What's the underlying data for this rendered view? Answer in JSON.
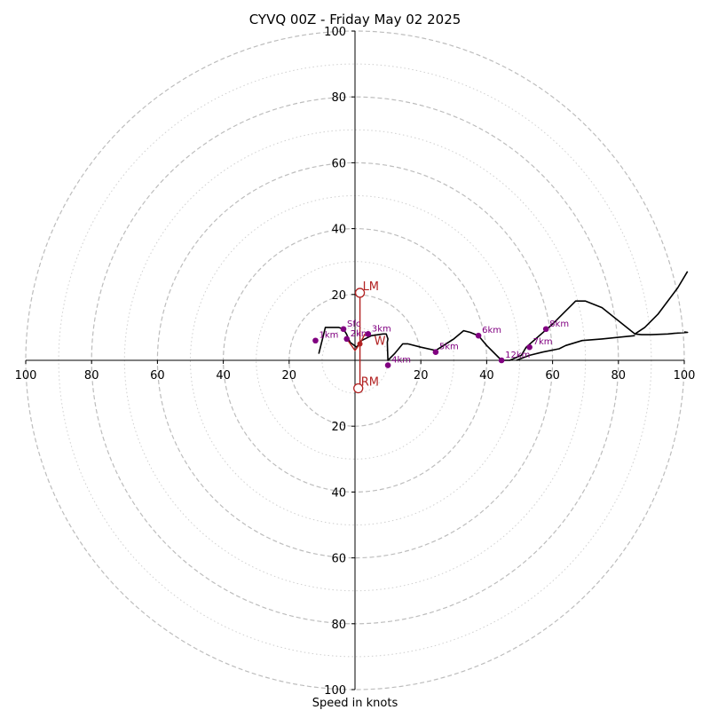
{
  "title": "CYVQ 00Z - Friday May 02 2025",
  "xlabel": "Speed in knots",
  "chart_data": {
    "type": "hodograph",
    "title": "CYVQ 00Z - Friday May 02 2025",
    "xlabel": "Speed in knots",
    "xlim": [
      -100,
      100
    ],
    "ylim": [
      -100,
      100
    ],
    "rings": {
      "major": [
        20,
        40,
        60,
        80,
        100
      ],
      "minor": [
        10,
        30,
        50,
        70,
        90
      ]
    },
    "x_ticks": [
      {
        "value": -100,
        "label": "100"
      },
      {
        "value": -80,
        "label": "80"
      },
      {
        "value": -60,
        "label": "60"
      },
      {
        "value": -40,
        "label": "40"
      },
      {
        "value": -20,
        "label": "20"
      },
      {
        "value": 20,
        "label": "20"
      },
      {
        "value": 40,
        "label": "40"
      },
      {
        "value": 60,
        "label": "60"
      },
      {
        "value": 80,
        "label": "80"
      },
      {
        "value": 100,
        "label": "100"
      }
    ],
    "y_ticks": [
      {
        "value": 100,
        "label": "100"
      },
      {
        "value": 80,
        "label": "80"
      },
      {
        "value": 60,
        "label": "60"
      },
      {
        "value": 40,
        "label": "40"
      },
      {
        "value": 20,
        "label": "20"
      },
      {
        "value": -20,
        "label": "20"
      },
      {
        "value": -40,
        "label": "40"
      },
      {
        "value": -60,
        "label": "60"
      },
      {
        "value": -80,
        "label": "80"
      },
      {
        "value": -100,
        "label": "100"
      }
    ],
    "trace": {
      "u": [
        -11,
        -9,
        -5,
        -3.5,
        -2.6,
        -1.5,
        0.5,
        2,
        5,
        8.5,
        9.5,
        10,
        9.8,
        10,
        12,
        14.5,
        16,
        20,
        24.5,
        30,
        33,
        35,
        37.5,
        40,
        44.5,
        47,
        50.5,
        52,
        60,
        66,
        67,
        70,
        75,
        85,
        88,
        92,
        98,
        101
      ],
      "v": [
        2,
        10,
        10,
        9.5,
        8,
        5.5,
        4,
        6,
        7.5,
        8,
        8,
        6.5,
        5.5,
        0,
        2,
        5,
        5,
        4,
        3,
        6.5,
        9,
        8.5,
        7.5,
        4.5,
        0,
        0,
        1.5,
        4,
        11,
        17,
        18,
        18,
        16,
        8,
        10,
        14,
        22,
        27
      ],
      "u2": [
        85,
        87,
        90,
        95,
        97,
        101,
        100
      ],
      "v2": [
        8,
        7.8,
        7.8,
        8,
        8.2,
        8.5,
        8.6
      ],
      "u3": [
        49,
        53,
        57,
        62,
        64,
        69,
        75,
        85
      ],
      "v3": [
        0,
        1.5,
        2.5,
        3.5,
        4.5,
        6,
        6.5,
        7.5
      ],
      "color": "#000000"
    },
    "height_markers": [
      {
        "label": "Sfc",
        "u": -3.5,
        "v": 9.5
      },
      {
        "label": "1km",
        "u": -12,
        "v": 6
      },
      {
        "label": "2km",
        "u": -2.5,
        "v": 6.5
      },
      {
        "label": "3km",
        "u": 4,
        "v": 8
      },
      {
        "label": "4km",
        "u": 10,
        "v": -1.5
      },
      {
        "label": "5km",
        "u": 24.5,
        "v": 2.5
      },
      {
        "label": "6km",
        "u": 37.5,
        "v": 7.5
      },
      {
        "label": "7km",
        "u": 53,
        "v": 4
      },
      {
        "label": "8km",
        "u": 58,
        "v": 9.5
      },
      {
        "label": "12km",
        "u": 44.5,
        "v": 0
      }
    ],
    "marker_color": "#800080",
    "storm_motion": [
      {
        "label": "LM",
        "u": 1.5,
        "v": 20.5
      },
      {
        "label": "RM",
        "u": 1,
        "v": -8.5
      }
    ],
    "mean_wind": {
      "label": "W",
      "u": 1.5,
      "v": 5
    },
    "storm_color": "#b22222",
    "bunkers_lines": [
      {
        "u": [
          1.5,
          1.5
        ],
        "v": [
          20.5,
          -8.5
        ]
      },
      {
        "u": [
          -2.5,
          0,
          1.5,
          3
        ],
        "v": [
          6.5,
          3,
          5,
          8
        ]
      }
    ]
  }
}
